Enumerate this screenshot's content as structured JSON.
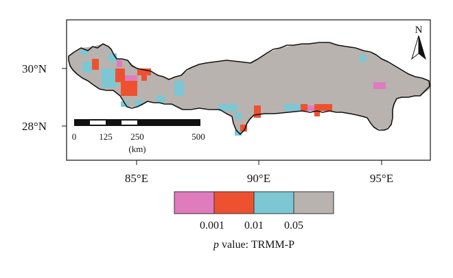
{
  "map": {
    "type": "geographic-raster",
    "lat_labels": [
      "30°N",
      "28°N"
    ],
    "lon_labels": [
      "85°E",
      "90°E",
      "95°E"
    ],
    "north_arrow_label": "N",
    "scale_bar": {
      "labels": [
        "0",
        "125",
        "250",
        "500"
      ],
      "unit": "(km)"
    },
    "legend": {
      "title_italic": "p",
      "title_rest": " value: TRMM-P",
      "thresholds": [
        "0.001",
        "0.01",
        "0.05"
      ],
      "classes": [
        {
          "color": "#e07bbd"
        },
        {
          "color": "#ee5130"
        },
        {
          "color": "#7cc7d3"
        },
        {
          "color": "#b8b3ae"
        }
      ]
    }
  }
}
